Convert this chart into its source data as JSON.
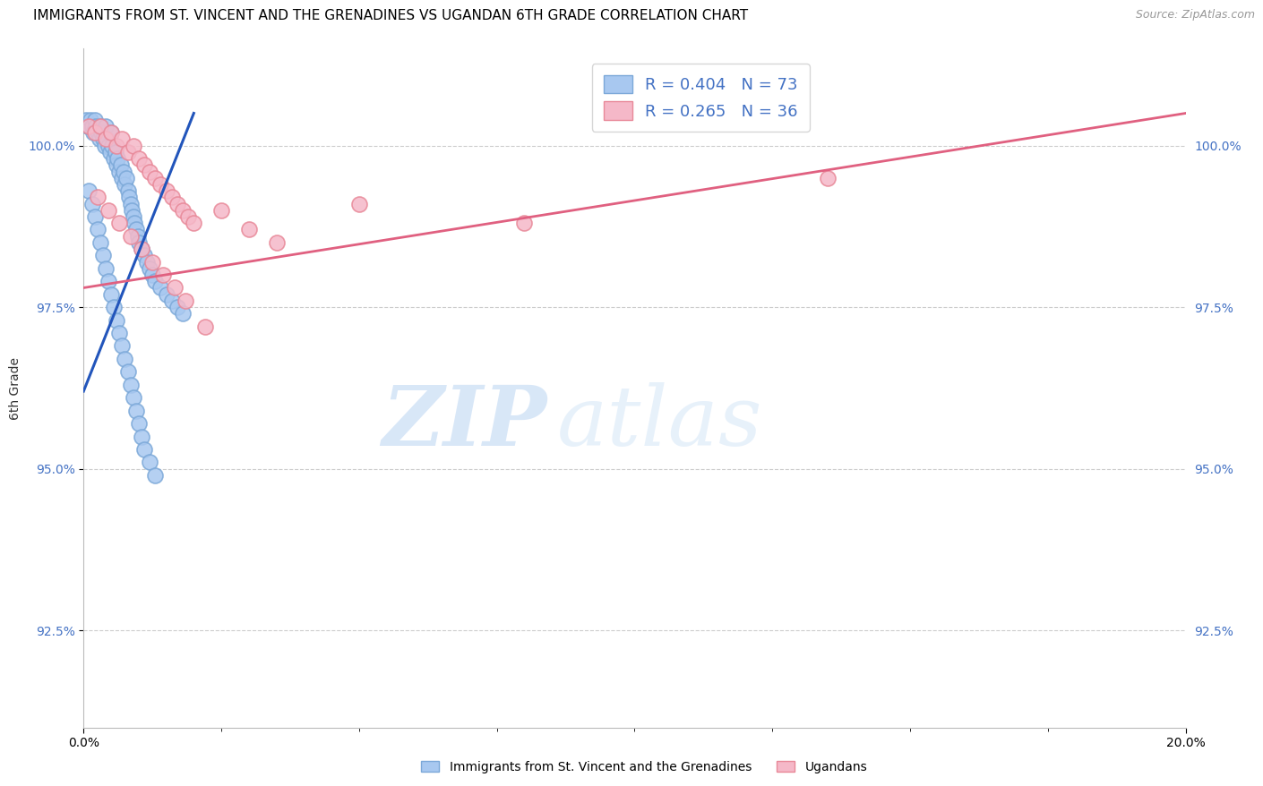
{
  "title": "IMMIGRANTS FROM ST. VINCENT AND THE GRENADINES VS UGANDAN 6TH GRADE CORRELATION CHART",
  "source": "Source: ZipAtlas.com",
  "ylabel": "6th Grade",
  "ytick_values": [
    92.5,
    95.0,
    97.5,
    100.0
  ],
  "xmin": 0.0,
  "xmax": 20.0,
  "ymin": 91.0,
  "ymax": 101.5,
  "legend_blue_r": "R = 0.404",
  "legend_blue_n": "N = 73",
  "legend_pink_r": "R = 0.265",
  "legend_pink_n": "N = 36",
  "blue_color": "#A8C8F0",
  "pink_color": "#F5B8C8",
  "blue_edge_color": "#7BA8D8",
  "pink_edge_color": "#E88898",
  "blue_line_color": "#2255BB",
  "pink_line_color": "#E06080",
  "legend_r_color": "#4472C4",
  "legend_n_color": "#4472C4",
  "blue_scatter_x": [
    0.05,
    0.08,
    0.1,
    0.12,
    0.15,
    0.18,
    0.2,
    0.22,
    0.25,
    0.28,
    0.3,
    0.32,
    0.35,
    0.38,
    0.4,
    0.42,
    0.45,
    0.48,
    0.5,
    0.52,
    0.55,
    0.58,
    0.6,
    0.62,
    0.65,
    0.68,
    0.7,
    0.72,
    0.75,
    0.78,
    0.8,
    0.82,
    0.85,
    0.88,
    0.9,
    0.92,
    0.95,
    0.98,
    1.0,
    1.05,
    1.1,
    1.15,
    1.2,
    1.25,
    1.3,
    1.4,
    1.5,
    1.6,
    1.7,
    1.8,
    0.1,
    0.15,
    0.2,
    0.25,
    0.3,
    0.35,
    0.4,
    0.45,
    0.5,
    0.55,
    0.6,
    0.65,
    0.7,
    0.75,
    0.8,
    0.85,
    0.9,
    0.95,
    1.0,
    1.05,
    1.1,
    1.2,
    1.3
  ],
  "blue_scatter_y": [
    100.4,
    100.3,
    100.3,
    100.4,
    100.3,
    100.2,
    100.4,
    100.3,
    100.2,
    100.1,
    100.3,
    100.2,
    100.1,
    100.0,
    100.3,
    100.1,
    100.0,
    99.9,
    100.2,
    100.0,
    99.8,
    99.9,
    99.7,
    99.8,
    99.6,
    99.7,
    99.5,
    99.6,
    99.4,
    99.5,
    99.3,
    99.2,
    99.1,
    99.0,
    98.9,
    98.8,
    98.7,
    98.6,
    98.5,
    98.4,
    98.3,
    98.2,
    98.1,
    98.0,
    97.9,
    97.8,
    97.7,
    97.6,
    97.5,
    97.4,
    99.3,
    99.1,
    98.9,
    98.7,
    98.5,
    98.3,
    98.1,
    97.9,
    97.7,
    97.5,
    97.3,
    97.1,
    96.9,
    96.7,
    96.5,
    96.3,
    96.1,
    95.9,
    95.7,
    95.5,
    95.3,
    95.1,
    94.9
  ],
  "pink_scatter_x": [
    0.1,
    0.2,
    0.3,
    0.4,
    0.5,
    0.6,
    0.7,
    0.8,
    0.9,
    1.0,
    1.1,
    1.2,
    1.3,
    1.4,
    1.5,
    1.6,
    1.7,
    1.8,
    1.9,
    2.0,
    2.5,
    3.0,
    3.5,
    5.0,
    8.0,
    13.5,
    0.25,
    0.45,
    0.65,
    0.85,
    1.05,
    1.25,
    1.45,
    1.65,
    1.85,
    2.2
  ],
  "pink_scatter_y": [
    100.3,
    100.2,
    100.3,
    100.1,
    100.2,
    100.0,
    100.1,
    99.9,
    100.0,
    99.8,
    99.7,
    99.6,
    99.5,
    99.4,
    99.3,
    99.2,
    99.1,
    99.0,
    98.9,
    98.8,
    99.0,
    98.7,
    98.5,
    99.1,
    98.8,
    99.5,
    99.2,
    99.0,
    98.8,
    98.6,
    98.4,
    98.2,
    98.0,
    97.8,
    97.6,
    97.2
  ],
  "blue_trendline_x": [
    0.0,
    2.0
  ],
  "blue_trendline_y": [
    96.2,
    100.5
  ],
  "pink_trendline_x": [
    0.0,
    20.0
  ],
  "pink_trendline_y": [
    97.8,
    100.5
  ],
  "legend_label_blue": "Immigrants from St. Vincent and the Grenadines",
  "legend_label_pink": "Ugandans",
  "watermark_zip": "ZIP",
  "watermark_atlas": "atlas",
  "background_color": "#ffffff",
  "grid_color": "#cccccc",
  "title_fontsize": 11,
  "axis_label_fontsize": 10,
  "tick_fontsize": 10,
  "right_tick_color": "#4472C4"
}
